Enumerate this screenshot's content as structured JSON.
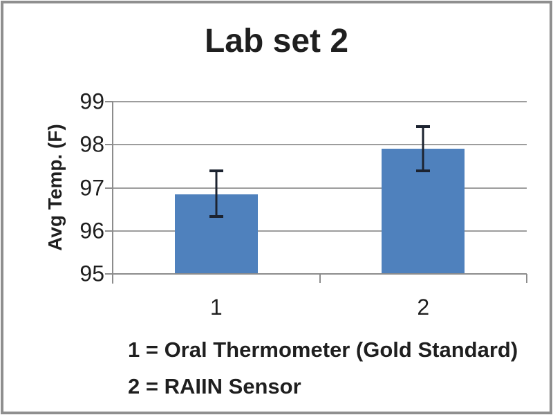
{
  "chart_data": {
    "type": "bar",
    "title": "Lab set 2",
    "ylabel": "Avg Temp. (F)",
    "xlabel": "",
    "categories": [
      "1",
      "2"
    ],
    "values": [
      96.85,
      97.9
    ],
    "error_low": [
      96.33,
      97.39
    ],
    "error_high": [
      97.39,
      98.42
    ],
    "ylim": [
      95,
      99
    ],
    "yticks": [
      99,
      98,
      97,
      96,
      95
    ],
    "grid": true,
    "legend_position": "none",
    "annotations": [
      "1 = Oral Thermometer (Gold Standard)",
      "2 = RAIIN Sensor"
    ],
    "colors": {
      "bar": "#4f81bd",
      "error_bar": "#1c2330",
      "gridline": "#9d9d9d",
      "axis": "#8c8c8c",
      "text": "#1f1f1f",
      "frame_border": "#8f8f8f",
      "background": "#ffffff"
    }
  }
}
